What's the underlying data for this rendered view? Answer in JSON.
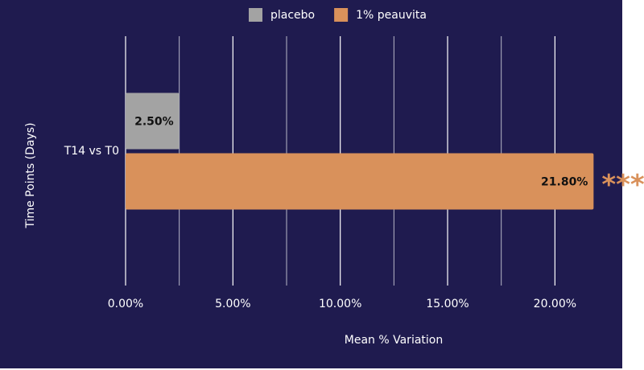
{
  "chart_data": {
    "type": "bar",
    "orientation": "horizontal",
    "x_label": "Mean % Variation",
    "y_label": "Time Points (Days)",
    "categories": [
      "T14 vs T0"
    ],
    "series": [
      {
        "name": "placebo",
        "color": "#a3a3a3",
        "values": [
          2.5
        ],
        "value_labels": [
          "2.50%"
        ]
      },
      {
        "name": "1% peauvita",
        "color": "#d9915b",
        "values": [
          21.8
        ],
        "value_labels": [
          "21.80%"
        ]
      }
    ],
    "annotations": [
      {
        "text": "***",
        "series": 1,
        "category": 0,
        "color": "#d9915b"
      }
    ],
    "xlim": [
      0,
      22
    ],
    "xticks": [
      {
        "value": 0,
        "label": "0.00%"
      },
      {
        "value": 5,
        "label": "5.00%"
      },
      {
        "value": 10,
        "label": "10.00%"
      },
      {
        "value": 15,
        "label": "15.00%"
      },
      {
        "value": 20,
        "label": "20.00%"
      }
    ],
    "xminorticks": [
      2.5,
      7.5,
      12.5,
      17.5
    ],
    "grid": true,
    "legend": "top"
  }
}
